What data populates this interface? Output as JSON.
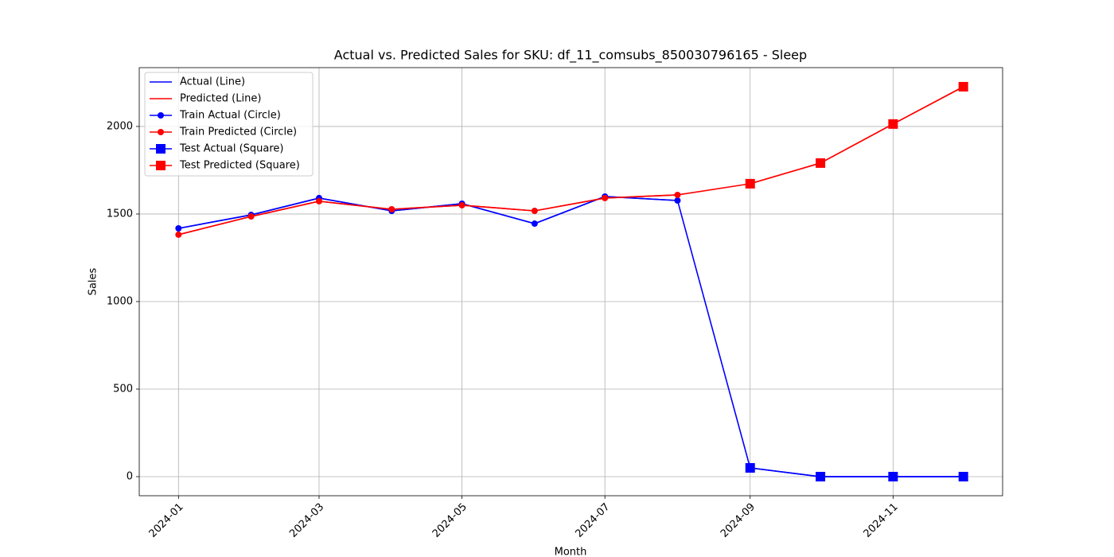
{
  "chart_data": {
    "type": "line",
    "title": "Actual vs. Predicted Sales for SKU: df_11_comsubs_850030796165 - Sleep",
    "xlabel": "Month",
    "ylabel": "Sales",
    "x": [
      "2024-01",
      "2024-02",
      "2024-03",
      "2024-04",
      "2024-05",
      "2024-06",
      "2024-07",
      "2024-08",
      "2024-09",
      "2024-10",
      "2024-11",
      "2024-12"
    ],
    "xticks": [
      "2024-01",
      "2024-03",
      "2024-05",
      "2024-07",
      "2024-09",
      "2024-11"
    ],
    "ylim": [
      -109,
      2336
    ],
    "yticks": [
      0,
      500,
      1000,
      1500,
      2000
    ],
    "grid": true,
    "legend": "upper left",
    "series": [
      {
        "name": "Actual (Line)",
        "color": "#0000ff",
        "marker": "none",
        "values": [
          1418,
          1495,
          1591,
          1518,
          1559,
          1445,
          1600,
          1577,
          50,
          0,
          0,
          0
        ]
      },
      {
        "name": "Predicted (Line)",
        "color": "#ff0000",
        "marker": "none",
        "values": [
          1382,
          1486,
          1573,
          1527,
          1550,
          1518,
          1591,
          1609,
          1673,
          1791,
          2014,
          2227
        ]
      },
      {
        "name": "Train Actual (Circle)",
        "color": "#0000ff",
        "marker": "circle",
        "values": [
          1418,
          1495,
          1591,
          1518,
          1559,
          1445,
          1600,
          1577,
          null,
          null,
          null,
          null
        ]
      },
      {
        "name": "Train Predicted (Circle)",
        "color": "#ff0000",
        "marker": "circle",
        "values": [
          1382,
          1486,
          1573,
          1527,
          1550,
          1518,
          1591,
          1609,
          null,
          null,
          null,
          null
        ]
      },
      {
        "name": "Test Actual (Square)",
        "color": "#0000ff",
        "marker": "square",
        "values": [
          null,
          null,
          null,
          null,
          null,
          null,
          null,
          null,
          50,
          0,
          0,
          0
        ]
      },
      {
        "name": "Test Predicted (Square)",
        "color": "#ff0000",
        "marker": "square",
        "values": [
          null,
          null,
          null,
          null,
          null,
          null,
          null,
          null,
          1673,
          1791,
          2014,
          2227
        ]
      }
    ]
  }
}
